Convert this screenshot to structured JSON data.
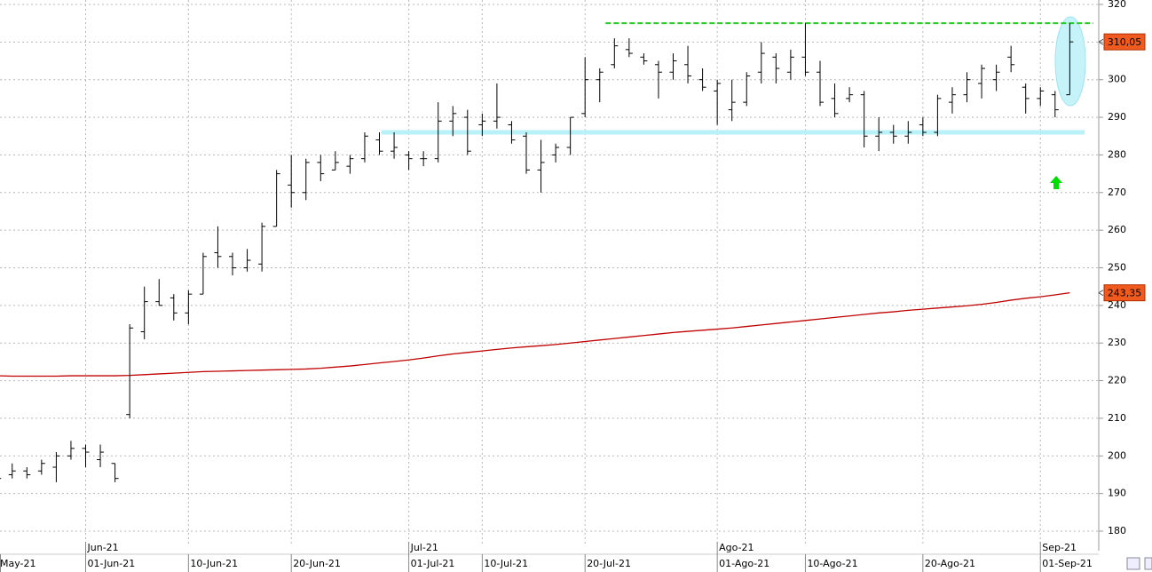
{
  "chart_data": {
    "type": "ohlc",
    "categories": [
      "May-21",
      null,
      null,
      null,
      null,
      null,
      "01-Jun-21",
      null,
      null,
      null,
      null,
      null,
      null,
      "10-Jun-21",
      null,
      null,
      null,
      null,
      null,
      null,
      "20-Jun-21",
      null,
      null,
      null,
      null,
      null,
      null,
      null,
      "01-Jul-21",
      null,
      null,
      null,
      null,
      "10-Jul-21",
      null,
      null,
      null,
      null,
      null,
      null,
      "20-Jul-21",
      null,
      null,
      null,
      null,
      null,
      null,
      null,
      null,
      "01-Ago-21",
      null,
      null,
      null,
      null,
      null,
      "10-Ago-21",
      null,
      null,
      null,
      null,
      null,
      null,
      null,
      "20-Ago-21",
      null,
      null,
      null,
      null,
      null,
      null,
      null,
      "01-Sep-21",
      null,
      null
    ],
    "month_ticks": [
      {
        "value": "01-Jun-21",
        "label": "Jun-21"
      },
      {
        "value": "01-Jul-21",
        "label": "Jul-21"
      },
      {
        "value": "01-Ago-21",
        "label": "Ago-21"
      },
      {
        "value": "01-Sep-21",
        "label": "Sep-21"
      }
    ],
    "open": [
      195,
      195,
      196,
      196,
      197,
      200,
      202,
      199,
      198,
      211,
      233,
      241,
      242,
      238,
      243,
      254,
      253,
      250,
      251,
      261,
      272,
      270,
      278,
      276,
      277,
      279,
      284,
      281,
      280,
      279,
      279,
      289,
      290,
      288,
      289,
      288,
      285,
      276,
      280,
      282,
      291,
      300,
      304,
      308,
      306,
      304,
      302,
      304,
      300,
      297,
      292,
      294,
      302,
      306,
      302,
      306,
      302,
      295,
      295,
      296,
      285,
      286,
      285,
      288,
      286,
      294,
      296,
      299,
      300,
      306,
      298,
      295,
      296,
      296
    ],
    "high": [
      196,
      198,
      197,
      199,
      201,
      204,
      203,
      203,
      198,
      235,
      245,
      247,
      243,
      244,
      254,
      261,
      254,
      255,
      262,
      276,
      280,
      279,
      280,
      281,
      280,
      286,
      286,
      286,
      281,
      281,
      294,
      293,
      292,
      291,
      299,
      289,
      286,
      284,
      283,
      290,
      306,
      303,
      311,
      311,
      307,
      305,
      307,
      309,
      303,
      300,
      300,
      302,
      310,
      307,
      308,
      315,
      305,
      299,
      298,
      297,
      290,
      288,
      289,
      290,
      296,
      298,
      302,
      304,
      304,
      309,
      299,
      298,
      297,
      315
    ],
    "low": [
      193,
      194,
      194,
      195,
      193,
      199,
      197,
      197,
      193,
      210,
      231,
      240,
      236,
      235,
      243,
      250,
      248,
      249,
      249,
      261,
      266,
      268,
      273,
      276,
      275,
      278,
      280,
      279,
      276,
      277,
      278,
      285,
      280,
      285,
      287,
      283,
      275,
      270,
      278,
      280,
      290,
      294,
      303,
      306,
      304,
      295,
      300,
      299,
      297,
      288,
      289,
      293,
      299,
      299,
      300,
      301,
      293,
      290,
      294,
      282,
      281,
      283,
      283,
      285,
      285,
      291,
      294,
      295,
      297,
      302,
      291,
      293,
      290,
      296
    ],
    "close": [
      194,
      196,
      195,
      198,
      200,
      202,
      201,
      201,
      194,
      234,
      241,
      240,
      238,
      243,
      253,
      253,
      250,
      252,
      261,
      275,
      270,
      278,
      275,
      278,
      279,
      285,
      281,
      282,
      279,
      279,
      289,
      291,
      281,
      289,
      290,
      284,
      276,
      278,
      282,
      290,
      300,
      302,
      309,
      307,
      305,
      302,
      305,
      301,
      298,
      299,
      294,
      301,
      307,
      303,
      306,
      302,
      294,
      291,
      296,
      285,
      286,
      285,
      286,
      286,
      295,
      296,
      300,
      303,
      302,
      304,
      295,
      297,
      292,
      310.05
    ],
    "ma": [
      221.3,
      221.2,
      221.2,
      221.2,
      221.2,
      221.3,
      221.3,
      221.3,
      221.3,
      221.4,
      221.6,
      221.8,
      222.0,
      222.2,
      222.4,
      222.5,
      222.6,
      222.7,
      222.8,
      222.9,
      223.0,
      223.1,
      223.3,
      223.6,
      223.9,
      224.3,
      224.7,
      225.1,
      225.5,
      226.0,
      226.6,
      227.1,
      227.5,
      227.9,
      228.3,
      228.7,
      229.0,
      229.3,
      229.6,
      230.0,
      230.4,
      230.8,
      231.2,
      231.6,
      232.0,
      232.4,
      232.8,
      233.1,
      233.4,
      233.7,
      234.0,
      234.4,
      234.8,
      235.2,
      235.6,
      236.0,
      236.4,
      236.8,
      237.2,
      237.6,
      238.0,
      238.3,
      238.7,
      239.0,
      239.3,
      239.6,
      239.9,
      240.3,
      240.8,
      241.4,
      241.9,
      242.3,
      242.8,
      243.35
    ],
    "bar_color": "#000000",
    "ma_color": "#c00000",
    "last_price": {
      "value": 310.05,
      "label": "310,05"
    },
    "last_ma": {
      "value": 243.35,
      "label": "243,35"
    },
    "resistance": 315,
    "resistance_color": "#22cc22",
    "support": 286,
    "support_color": "#b8f2f8",
    "ylim": [
      176,
      321
    ],
    "yticks": [
      180,
      190,
      200,
      210,
      220,
      230,
      240,
      250,
      260,
      270,
      280,
      290,
      300,
      310,
      320
    ],
    "grid": true
  }
}
